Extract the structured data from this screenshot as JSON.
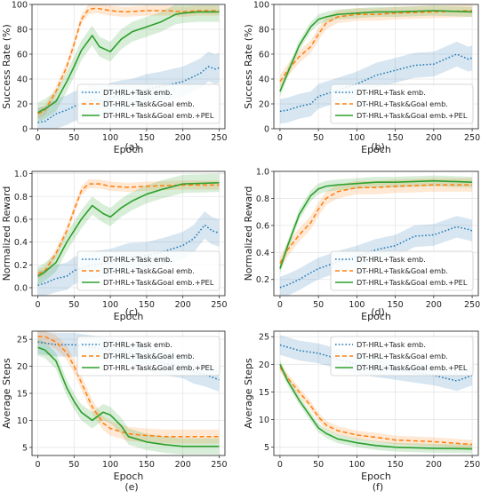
{
  "colors": {
    "task": "#1f77b4",
    "taskgoal": "#ff7f0e",
    "pel": "#2ca02c",
    "grid": "#e6e6e6",
    "axis": "#333333"
  },
  "legend_labels": [
    "DT-HRL+Task emb.",
    "DT-HRL+Task&Goal emb.",
    "DT-HRL+Task&Goal emb.+PEL"
  ],
  "chart_data": [
    {
      "type": "line",
      "panel": "(a)",
      "xlabel": "Epoch",
      "ylabel": "Success Rate (%)",
      "xlim": [
        -8,
        258
      ],
      "ylim": [
        0,
        100
      ],
      "xticks": [
        0,
        50,
        100,
        150,
        200,
        250
      ],
      "yticks": [
        0,
        20,
        40,
        60,
        80,
        100
      ],
      "grid": true,
      "legend_position": "lower-right",
      "series": [
        {
          "name": "DT-HRL+Task emb.",
          "style": "dotted",
          "colorKey": "task",
          "band": 12,
          "x": [
            0,
            10,
            25,
            40,
            50,
            60,
            75,
            90,
            100,
            115,
            130,
            150,
            170,
            185,
            200,
            215,
            225,
            235,
            245,
            250
          ],
          "y": [
            5,
            6,
            12,
            15,
            18,
            20,
            23,
            22,
            25,
            27,
            28,
            32,
            34,
            36,
            38,
            42,
            45,
            50,
            48,
            49
          ]
        },
        {
          "name": "DT-HRL+Task&Goal emb.",
          "style": "dashed",
          "colorKey": "taskgoal",
          "band": 4,
          "x": [
            0,
            10,
            25,
            40,
            50,
            60,
            70,
            80,
            90,
            100,
            120,
            150,
            180,
            200,
            220,
            250
          ],
          "y": [
            12,
            15,
            30,
            50,
            68,
            88,
            96,
            97,
            96,
            95,
            94,
            95,
            95,
            94,
            95,
            95
          ]
        },
        {
          "name": "DT-HRL+Task&Goal emb.+PEL",
          "style": "solid",
          "colorKey": "pel",
          "band": 8,
          "x": [
            0,
            10,
            25,
            40,
            50,
            60,
            75,
            85,
            100,
            115,
            130,
            150,
            170,
            190,
            200,
            220,
            250
          ],
          "y": [
            13,
            16,
            22,
            38,
            50,
            63,
            75,
            66,
            62,
            72,
            78,
            82,
            86,
            92,
            93,
            94,
            94
          ]
        }
      ]
    },
    {
      "type": "line",
      "panel": "(b)",
      "xlabel": "Epoch",
      "ylabel": "Success Rate (%)",
      "xlim": [
        -8,
        258
      ],
      "ylim": [
        0,
        100
      ],
      "xticks": [
        0,
        50,
        100,
        150,
        200,
        250
      ],
      "yticks": [
        0,
        20,
        40,
        60,
        80,
        100
      ],
      "grid": true,
      "legend_position": "lower-right",
      "series": [
        {
          "name": "DT-HRL+Task emb.",
          "style": "dotted",
          "colorKey": "task",
          "band": 10,
          "x": [
            0,
            10,
            25,
            40,
            50,
            75,
            100,
            125,
            150,
            175,
            200,
            215,
            230,
            245,
            250
          ],
          "y": [
            14,
            15,
            18,
            20,
            26,
            31,
            36,
            43,
            47,
            51,
            52,
            56,
            60,
            56,
            57
          ]
        },
        {
          "name": "DT-HRL+Task&Goal emb.",
          "style": "dashed",
          "colorKey": "taskgoal",
          "band": 5,
          "x": [
            0,
            10,
            25,
            40,
            50,
            60,
            75,
            100,
            125,
            150,
            200,
            250
          ],
          "y": [
            38,
            47,
            58,
            66,
            76,
            85,
            90,
            92,
            92,
            93,
            94,
            95
          ]
        },
        {
          "name": "DT-HRL+Task&Goal emb.+PEL",
          "style": "solid",
          "colorKey": "pel",
          "band": 4,
          "x": [
            0,
            10,
            25,
            40,
            50,
            60,
            75,
            100,
            125,
            150,
            200,
            250
          ],
          "y": [
            30,
            45,
            67,
            82,
            88,
            90,
            92,
            93,
            94,
            94,
            95,
            94
          ]
        }
      ]
    },
    {
      "type": "line",
      "panel": "(c)",
      "xlabel": "Epoch",
      "ylabel": "Normalized Reward",
      "xlim": [
        -8,
        258
      ],
      "ylim": [
        -0.07,
        1.02
      ],
      "xticks": [
        0,
        50,
        100,
        150,
        200,
        250
      ],
      "yticks": [
        0.0,
        0.2,
        0.4,
        0.6,
        0.8,
        1.0
      ],
      "grid": true,
      "legend_position": "lower-right",
      "series": [
        {
          "name": "DT-HRL+Task emb.",
          "style": "dotted",
          "colorKey": "task",
          "band": 0.12,
          "x": [
            0,
            10,
            25,
            40,
            50,
            75,
            100,
            125,
            150,
            175,
            200,
            215,
            230,
            240,
            250
          ],
          "y": [
            0.02,
            0.04,
            0.08,
            0.1,
            0.15,
            0.2,
            0.22,
            0.27,
            0.28,
            0.32,
            0.37,
            0.43,
            0.55,
            0.5,
            0.48
          ]
        },
        {
          "name": "DT-HRL+Task&Goal emb.",
          "style": "dashed",
          "colorKey": "taskgoal",
          "band": 0.04,
          "x": [
            0,
            10,
            25,
            40,
            50,
            60,
            70,
            85,
            100,
            125,
            150,
            200,
            250
          ],
          "y": [
            0.12,
            0.15,
            0.3,
            0.5,
            0.68,
            0.85,
            0.91,
            0.91,
            0.89,
            0.88,
            0.89,
            0.9,
            0.9
          ]
        },
        {
          "name": "DT-HRL+Task&Goal emb.+PEL",
          "style": "solid",
          "colorKey": "pel",
          "band": 0.08,
          "x": [
            0,
            10,
            25,
            40,
            50,
            60,
            75,
            90,
            100,
            115,
            130,
            150,
            170,
            200,
            250
          ],
          "y": [
            0.1,
            0.14,
            0.22,
            0.4,
            0.5,
            0.6,
            0.72,
            0.65,
            0.62,
            0.7,
            0.76,
            0.82,
            0.86,
            0.91,
            0.92
          ]
        }
      ]
    },
    {
      "type": "line",
      "panel": "(d)",
      "xlabel": "Epoch",
      "ylabel": "Normalized Reward",
      "xlim": [
        -8,
        258
      ],
      "ylim": [
        0.08,
        1.0
      ],
      "xticks": [
        0,
        50,
        100,
        150,
        200,
        250
      ],
      "yticks": [
        0.2,
        0.4,
        0.6,
        0.8,
        1.0
      ],
      "grid": true,
      "legend_position": "lower-right",
      "series": [
        {
          "name": "DT-HRL+Task emb.",
          "style": "dotted",
          "colorKey": "task",
          "band": 0.08,
          "x": [
            0,
            10,
            25,
            40,
            50,
            75,
            100,
            125,
            150,
            175,
            200,
            215,
            230,
            245,
            250
          ],
          "y": [
            0.14,
            0.16,
            0.2,
            0.25,
            0.28,
            0.33,
            0.37,
            0.42,
            0.45,
            0.52,
            0.53,
            0.56,
            0.59,
            0.57,
            0.56
          ]
        },
        {
          "name": "DT-HRL+Task&Goal emb.",
          "style": "dashed",
          "colorKey": "taskgoal",
          "band": 0.05,
          "x": [
            0,
            10,
            25,
            40,
            50,
            60,
            75,
            100,
            125,
            150,
            200,
            250
          ],
          "y": [
            0.32,
            0.42,
            0.53,
            0.62,
            0.72,
            0.8,
            0.85,
            0.88,
            0.88,
            0.89,
            0.9,
            0.9
          ]
        },
        {
          "name": "DT-HRL+Task&Goal emb.+PEL",
          "style": "solid",
          "colorKey": "pel",
          "band": 0.04,
          "x": [
            0,
            10,
            25,
            40,
            50,
            60,
            75,
            100,
            125,
            150,
            200,
            250
          ],
          "y": [
            0.28,
            0.45,
            0.68,
            0.82,
            0.87,
            0.89,
            0.9,
            0.91,
            0.92,
            0.92,
            0.93,
            0.92
          ]
        }
      ]
    },
    {
      "type": "line",
      "panel": "(e)",
      "xlabel": "Epoch",
      "ylabel": "Average Steps",
      "xlim": [
        -8,
        258
      ],
      "ylim": [
        3.5,
        26.5
      ],
      "xticks": [
        0,
        50,
        100,
        150,
        200,
        250
      ],
      "yticks": [
        5,
        10,
        15,
        20,
        25
      ],
      "grid": true,
      "legend_position": "upper-right",
      "series": [
        {
          "name": "DT-HRL+Task emb.",
          "style": "dotted",
          "colorKey": "task",
          "band": 2.2,
          "x": [
            0,
            25,
            50,
            75,
            100,
            125,
            150,
            175,
            200,
            215,
            230,
            240,
            250
          ],
          "y": [
            24.5,
            24.0,
            24.0,
            23.5,
            23.0,
            22.5,
            21.5,
            20.5,
            20.0,
            19.0,
            18.5,
            18.0,
            17.5
          ]
        },
        {
          "name": "DT-HRL+Task&Goal emb.",
          "style": "dashed",
          "colorKey": "taskgoal",
          "band": 1.3,
          "x": [
            0,
            10,
            25,
            40,
            50,
            60,
            75,
            90,
            100,
            125,
            150,
            175,
            200,
            250
          ],
          "y": [
            25.5,
            25.5,
            24.5,
            22.5,
            20.0,
            17.0,
            12.5,
            9.5,
            8.5,
            7.5,
            7.2,
            7.0,
            7.0,
            7.0
          ]
        },
        {
          "name": "DT-HRL+Task&Goal emb.+PEL",
          "style": "solid",
          "colorKey": "pel",
          "band": 1.5,
          "x": [
            0,
            10,
            25,
            40,
            50,
            60,
            75,
            90,
            100,
            115,
            125,
            150,
            175,
            200,
            250
          ],
          "y": [
            23.5,
            23.0,
            21.0,
            16.0,
            13.5,
            11.5,
            10.0,
            11.5,
            11.0,
            9.0,
            7.0,
            6.0,
            5.5,
            5.2,
            5.2
          ]
        }
      ]
    },
    {
      "type": "line",
      "panel": "(f)",
      "xlabel": "Epoch",
      "ylabel": "Average Steps",
      "xlim": [
        -8,
        258
      ],
      "ylim": [
        3.5,
        26.0
      ],
      "xticks": [
        0,
        50,
        100,
        150,
        200,
        250
      ],
      "yticks": [
        5,
        10,
        15,
        20,
        25
      ],
      "grid": true,
      "legend_position": "upper-right",
      "series": [
        {
          "name": "DT-HRL+Task emb.",
          "style": "dotted",
          "colorKey": "task",
          "band": 1.8,
          "x": [
            0,
            25,
            50,
            75,
            100,
            125,
            150,
            175,
            200,
            215,
            230,
            240,
            250
          ],
          "y": [
            23.5,
            22.5,
            22.0,
            21.0,
            20.0,
            19.5,
            19.0,
            18.5,
            18.0,
            17.5,
            17.0,
            17.5,
            18.0
          ]
        },
        {
          "name": "DT-HRL+Task&Goal emb.",
          "style": "dashed",
          "colorKey": "taskgoal",
          "band": 0.8,
          "x": [
            0,
            10,
            25,
            40,
            50,
            60,
            75,
            100,
            125,
            150,
            200,
            250
          ],
          "y": [
            19.5,
            17.5,
            15.0,
            12.5,
            10.5,
            9.0,
            8.0,
            7.2,
            6.8,
            6.3,
            6.0,
            5.5
          ]
        },
        {
          "name": "DT-HRL+Task&Goal emb.+PEL",
          "style": "solid",
          "colorKey": "pel",
          "band": 0.8,
          "x": [
            0,
            10,
            25,
            40,
            50,
            60,
            75,
            100,
            125,
            150,
            200,
            250
          ],
          "y": [
            20.0,
            17.0,
            13.5,
            10.5,
            8.5,
            7.5,
            6.5,
            5.8,
            5.3,
            5.0,
            4.8,
            4.7
          ]
        }
      ]
    }
  ]
}
